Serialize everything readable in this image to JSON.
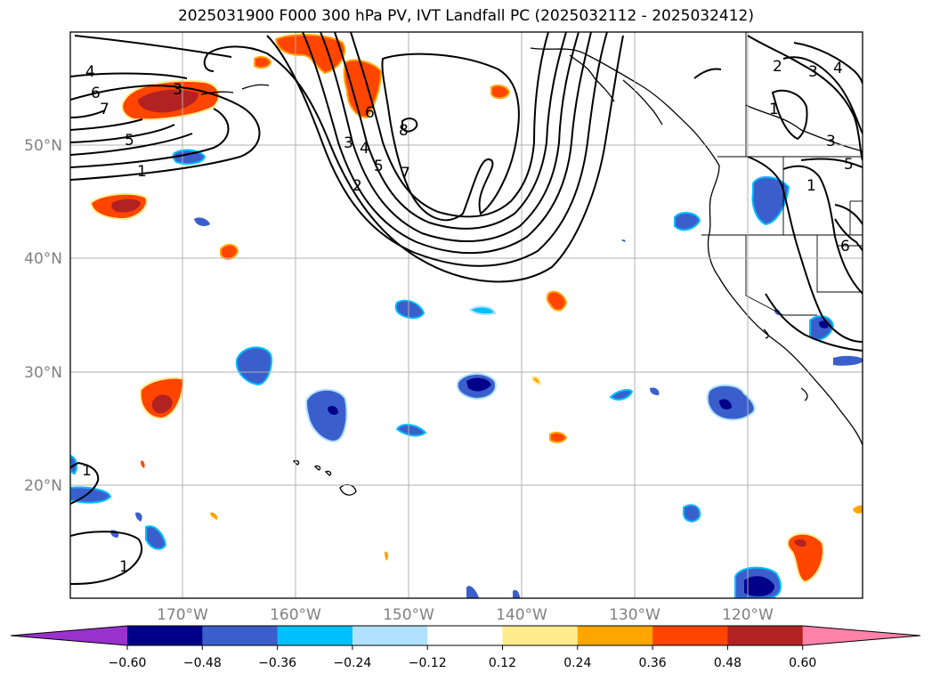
{
  "title": "2025031900 F000 300 hPa PV, IVT Landfall PC (2025032112 - 2025032412)",
  "lat_labels": [
    "50°N",
    "40°N",
    "30°N",
    "20°N"
  ],
  "lon_labels": [
    "170°W",
    "160°W",
    "150°W",
    "140°W",
    "130°W",
    "120°W"
  ],
  "colorbar": {
    "levels": [
      "−0.60",
      "−0.48",
      "−0.36",
      "−0.24",
      "−0.12",
      "0.12",
      "0.24",
      "0.36",
      "0.48",
      "0.60"
    ],
    "colors": [
      "#9932cc",
      "#00008b",
      "#3a5fcd",
      "#00bfff",
      "#b0e2ff",
      "#ffffff",
      "#ffec8b",
      "#ffa500",
      "#ff4500",
      "#b22222",
      "#ff82ab"
    ]
  },
  "contour_labels": [
    "4",
    "6",
    "7",
    "3",
    "5",
    "1",
    "2",
    "3",
    "4",
    "5",
    "7",
    "8",
    "6",
    "2",
    "3",
    "4",
    "1",
    "3",
    "5",
    "6",
    "1",
    "1",
    "1"
  ],
  "map": {
    "region": "North Pacific",
    "lat_range": [
      10,
      60
    ],
    "lon_range": [
      -180,
      -110
    ],
    "projection": "PlateCarree",
    "grid": true
  }
}
